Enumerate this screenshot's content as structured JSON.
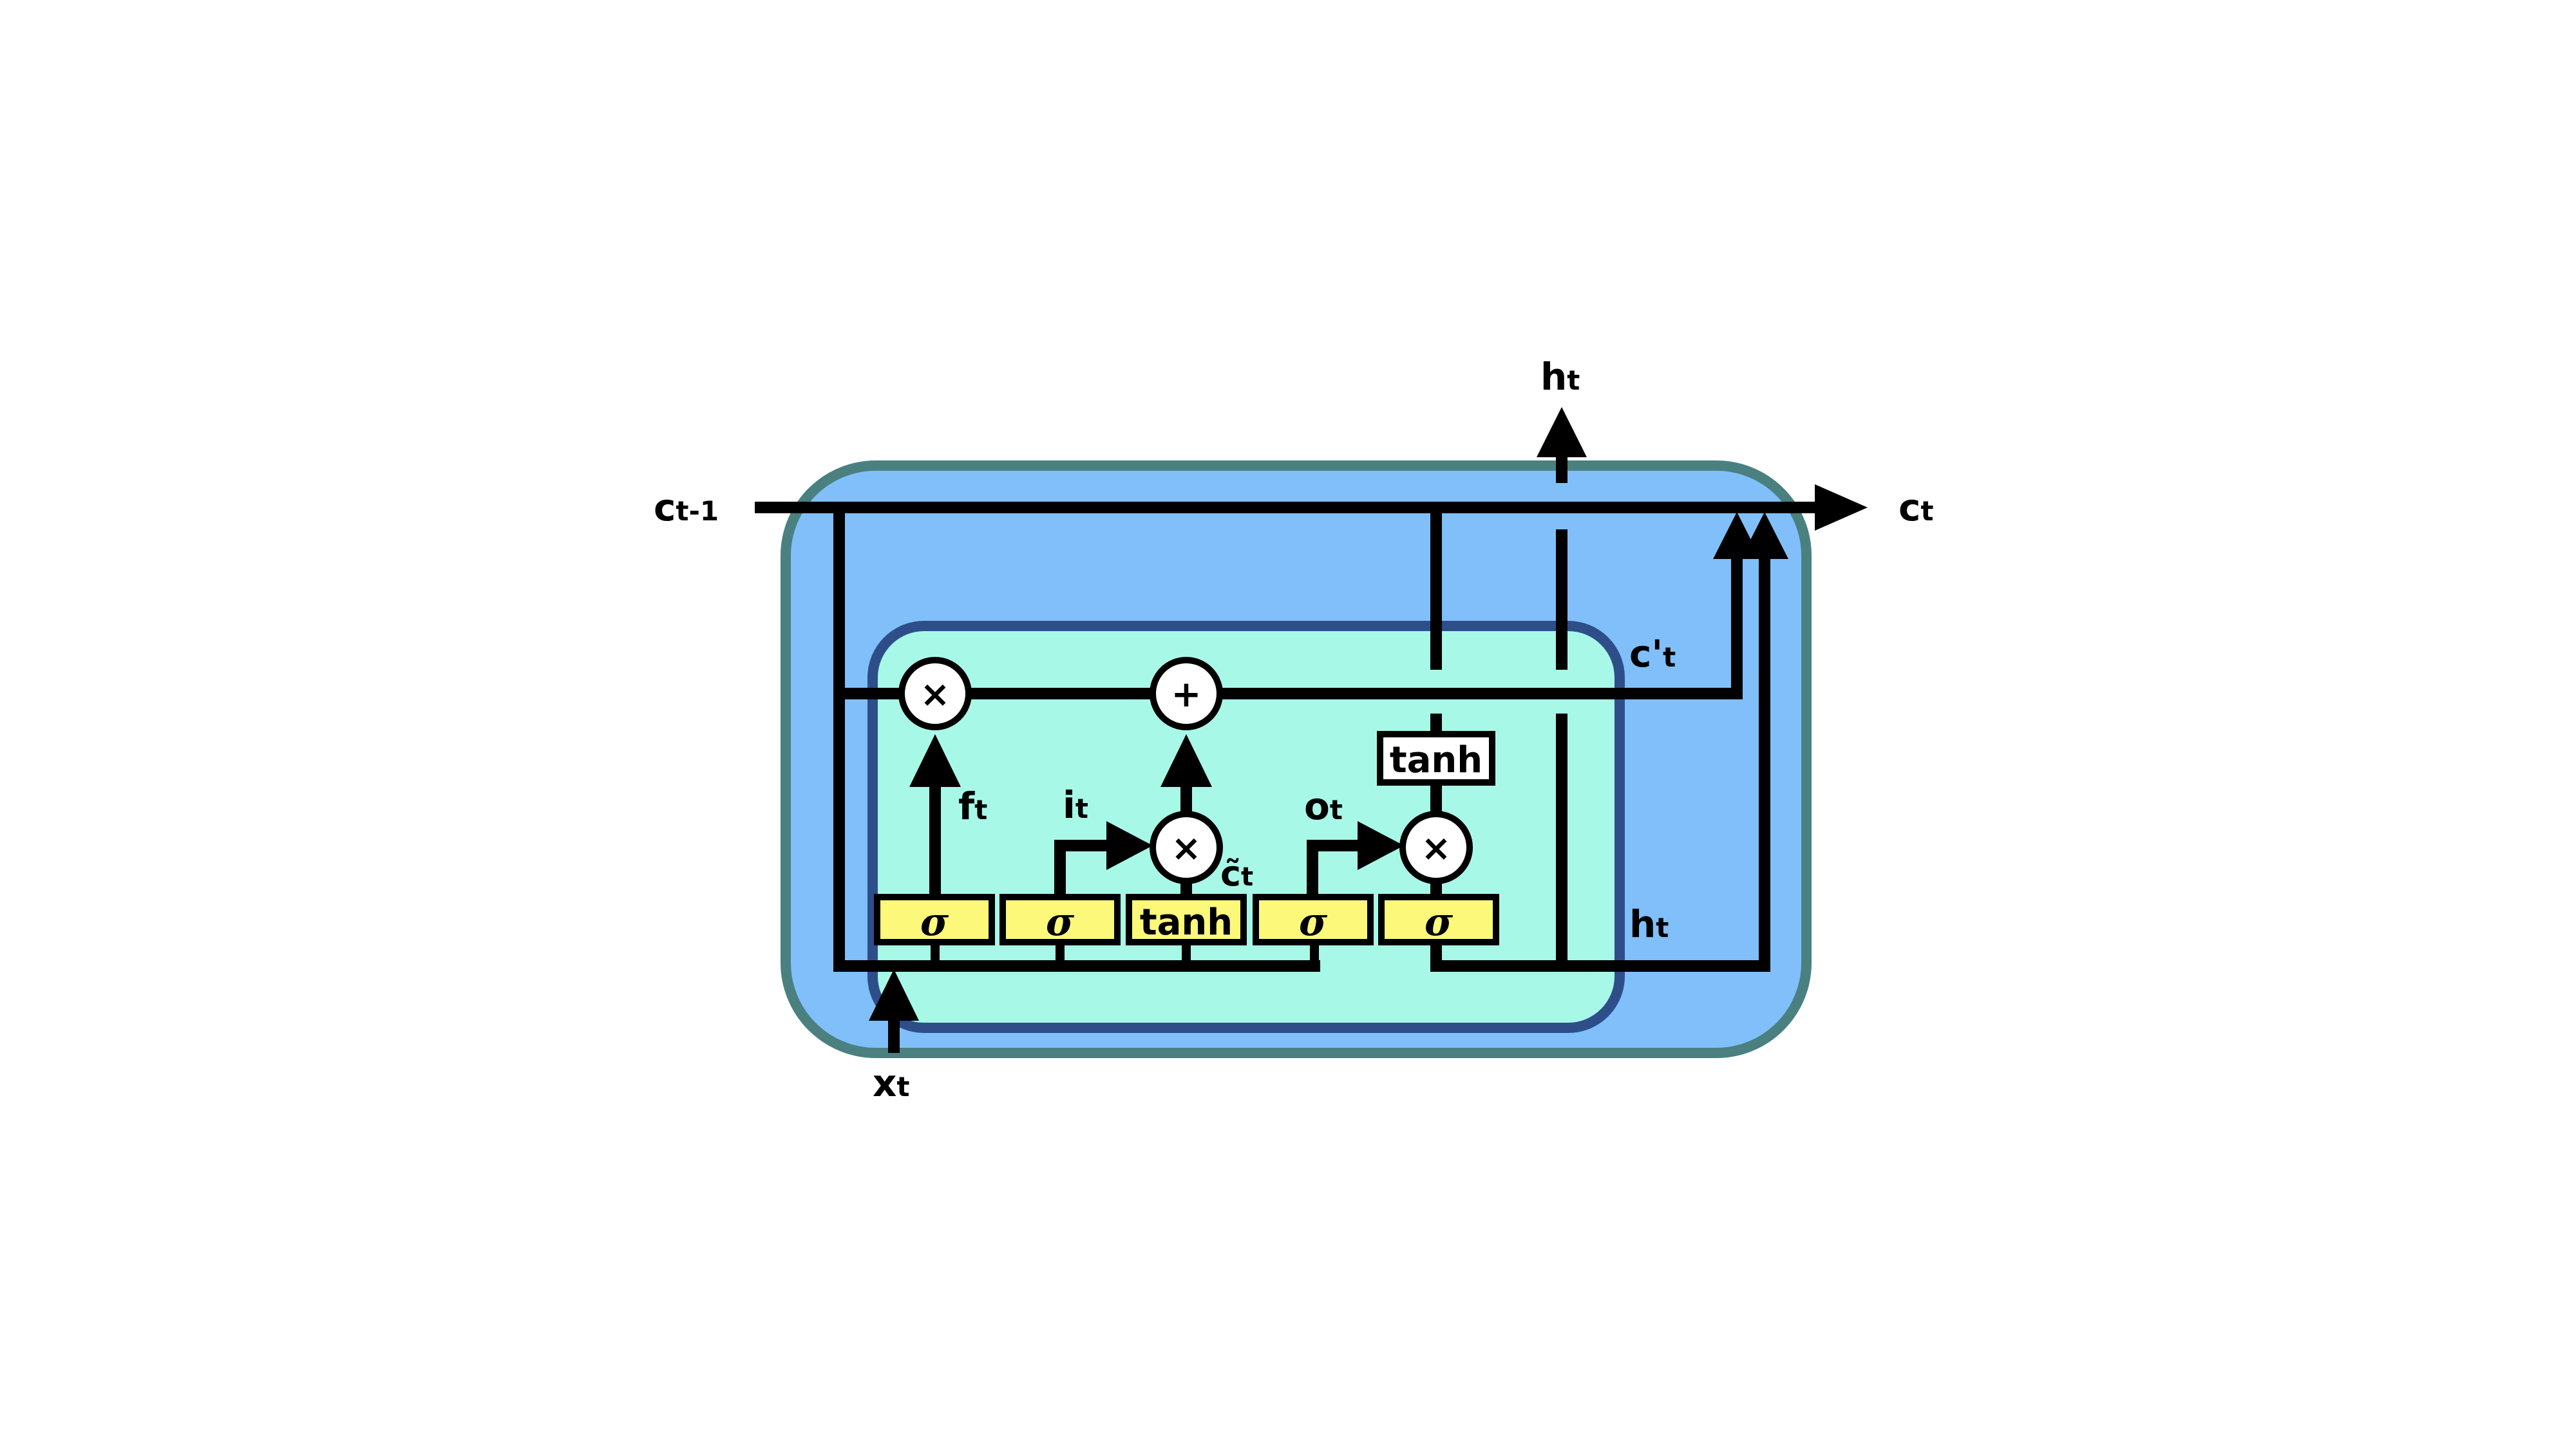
{
  "colors": {
    "outer_fill": "#80BFFA",
    "outer_stroke": "#4A8080",
    "inner_fill": "#A8F8E8",
    "inner_stroke": "#2E4E8A",
    "gate_fill": "#FCF87A",
    "line": "#000000"
  },
  "labels": {
    "c_prev": {
      "main": "c",
      "sub": "t-1"
    },
    "c_next": {
      "main": "c",
      "sub": "t"
    },
    "h_top": {
      "main": "h",
      "sub": "t"
    },
    "c_prime": {
      "main": "c'",
      "sub": "t"
    },
    "h_right": {
      "main": "h",
      "sub": "t"
    },
    "x_in": {
      "main": "x",
      "sub": "t"
    },
    "f_gate": {
      "main": "f",
      "sub": "t"
    },
    "i_gate": {
      "main": "i",
      "sub": "t"
    },
    "c_tilde": {
      "main": "c̃",
      "sub": "t"
    },
    "o_gate": {
      "main": "o",
      "sub": "t"
    }
  },
  "gates": {
    "forget": "σ",
    "input": "σ",
    "candidate": "tanh",
    "output_pre": "σ",
    "output": "σ",
    "cell_tanh": "tanh"
  },
  "operators": {
    "mult_forget": "×",
    "add": "+",
    "mult_input": "×",
    "mult_output": "×"
  }
}
